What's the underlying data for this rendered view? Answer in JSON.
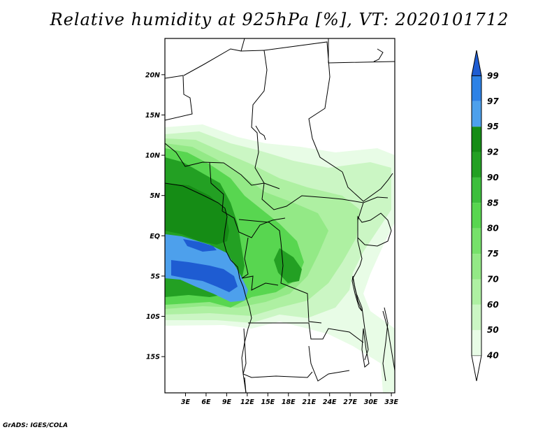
{
  "title": "Relative humidity at 925hPa [%], VT: 2020101712",
  "credit": "GrADS: IGES/COLA",
  "map": {
    "lat_range": [
      -19.5,
      24.5
    ],
    "lon_range": [
      0,
      33.5
    ],
    "lat_ticks": [
      {
        "value": 20,
        "label": "20N"
      },
      {
        "value": 15,
        "label": "15N"
      },
      {
        "value": 10,
        "label": "10N"
      },
      {
        "value": 5,
        "label": "5N"
      },
      {
        "value": 0,
        "label": "EQ"
      },
      {
        "value": -5,
        "label": "5S"
      },
      {
        "value": -10,
        "label": "10S"
      },
      {
        "value": -15,
        "label": "15S"
      }
    ],
    "lon_ticks": [
      {
        "value": 3,
        "label": "3E"
      },
      {
        "value": 6,
        "label": "6E"
      },
      {
        "value": 9,
        "label": "9E"
      },
      {
        "value": 12,
        "label": "12E"
      },
      {
        "value": 15,
        "label": "15E"
      },
      {
        "value": 18,
        "label": "18E"
      },
      {
        "value": 21,
        "label": "21E"
      },
      {
        "value": 24,
        "label": "24E"
      },
      {
        "value": 27,
        "label": "27E"
      },
      {
        "value": 30,
        "label": "30E"
      },
      {
        "value": 33,
        "label": "33E"
      }
    ]
  },
  "colorbar": {
    "levels": [
      "40",
      "50",
      "60",
      "70",
      "75",
      "80",
      "85",
      "90",
      "92",
      "95",
      "97",
      "99"
    ],
    "colors": [
      "#ffffff",
      "#e8fce6",
      "#cbf6c4",
      "#aef0a2",
      "#93e986",
      "#76e16a",
      "#58d650",
      "#3dbf3d",
      "#23a023",
      "#158c15",
      "#4da0ec",
      "#2d82e6",
      "#1e5cd2"
    ]
  },
  "humidity_colors": {
    "c40": "#e8fce6",
    "c50": "#cbf6c4",
    "c60": "#aef0a2",
    "c70": "#93e986",
    "c80": "#58d650",
    "c90": "#23a023",
    "c95": "#158c15",
    "c97": "#4da0ec",
    "c99": "#1e5cd2"
  }
}
